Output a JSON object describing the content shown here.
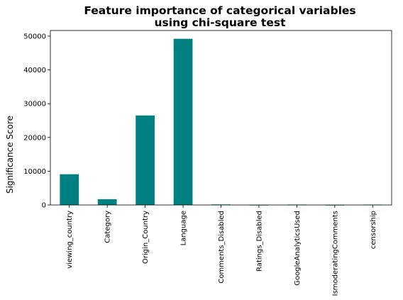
{
  "chart_data": {
    "type": "bar",
    "title_lines": [
      "Feature importance of categorical variables",
      "using chi-square test"
    ],
    "xlabel": "",
    "ylabel": "Significance Score",
    "categories": [
      "viewing_country",
      "Category",
      "Origin_Country",
      "Language",
      "Comments_Disabled",
      "Ratings_Disabled",
      "GoogleAnalyticsUsed",
      "IsmoderatingComments",
      "censorship"
    ],
    "values": [
      9100,
      1700,
      26500,
      49200,
      150,
      30,
      120,
      20,
      110
    ],
    "ylim": [
      0,
      51660
    ],
    "yticks": [
      0,
      10000,
      20000,
      30000,
      40000,
      50000
    ],
    "ytick_labels": [
      "0",
      "10000",
      "20000",
      "30000",
      "40000",
      "50000"
    ],
    "bar_color": "#008080",
    "grid": false,
    "legend": "none"
  }
}
